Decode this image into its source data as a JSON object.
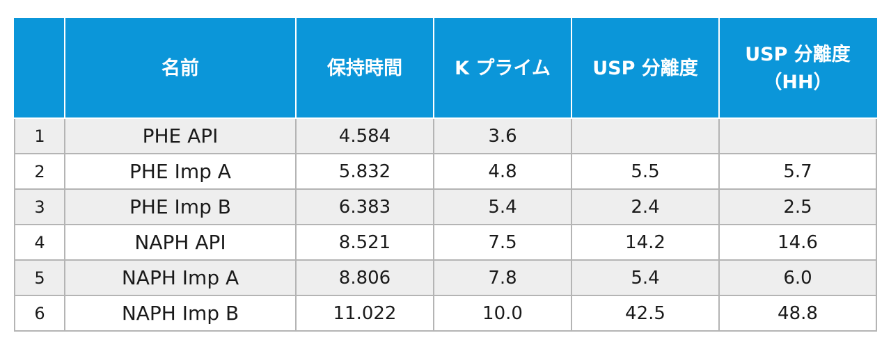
{
  "table": {
    "headers": [
      "",
      "名前",
      "保持時間",
      "K プライム",
      "USP 分離度",
      "USP 分離度\n（HH）"
    ],
    "rows": [
      [
        "1",
        "PHE API",
        "4.584",
        "3.6",
        "",
        ""
      ],
      [
        "2",
        "PHE Imp A",
        "5.832",
        "4.8",
        "5.5",
        "5.7"
      ],
      [
        "3",
        "PHE Imp B",
        "6.383",
        "5.4",
        "2.4",
        "2.5"
      ],
      [
        "4",
        "NAPH API",
        "8.521",
        "7.5",
        "14.2",
        "14.6"
      ],
      [
        "5",
        "NAPH Imp A",
        "8.806",
        "7.8",
        "5.4",
        "6.0"
      ],
      [
        "6",
        "NAPH Imp B",
        "11.022",
        "10.0",
        "42.5",
        "48.8"
      ]
    ]
  },
  "colors": {
    "header_background": "#0b96d9",
    "header_text": "#ffffff",
    "odd_row_background": "#eeeeee",
    "even_row_background": "#ffffff",
    "grid_line": "#b4b4b4"
  }
}
